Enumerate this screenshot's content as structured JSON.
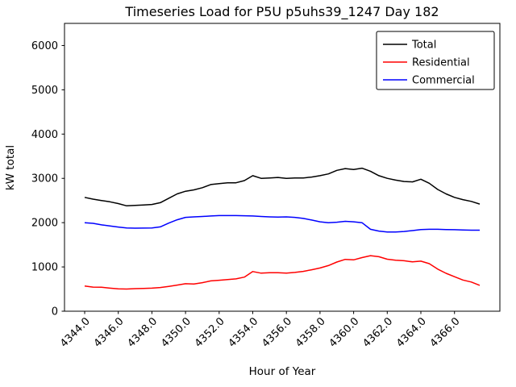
{
  "chart_data": {
    "type": "line",
    "title": "Timeseries Load for P5U p5uhs39_1247  Day 182",
    "xlabel": "Hour of Year",
    "ylabel": "kW total",
    "xlim": [
      4342.8,
      4368.7
    ],
    "ylim": [
      0,
      6500
    ],
    "x_ticks": [
      4344,
      4346,
      4348,
      4350,
      4352,
      4354,
      4356,
      4358,
      4360,
      4362,
      4364,
      4366
    ],
    "x_tick_labels": [
      "4344.0",
      "4346.0",
      "4348.0",
      "4350.0",
      "4352.0",
      "4354.0",
      "4356.0",
      "4358.0",
      "4360.0",
      "4362.0",
      "4364.0",
      "4366.0"
    ],
    "y_ticks": [
      0,
      1000,
      2000,
      3000,
      4000,
      5000,
      6000
    ],
    "y_tick_labels": [
      "0",
      "1000",
      "2000",
      "3000",
      "4000",
      "5000",
      "6000"
    ],
    "grid": false,
    "legend_position": "upper right",
    "x": [
      4344.0,
      4344.5,
      4345.0,
      4345.5,
      4346.0,
      4346.5,
      4347.0,
      4347.5,
      4348.0,
      4348.5,
      4349.0,
      4349.5,
      4350.0,
      4350.5,
      4351.0,
      4351.5,
      4352.0,
      4352.5,
      4353.0,
      4353.5,
      4354.0,
      4354.5,
      4355.0,
      4355.5,
      4356.0,
      4356.5,
      4357.0,
      4357.5,
      4358.0,
      4358.5,
      4359.0,
      4359.5,
      4360.0,
      4360.5,
      4361.0,
      4361.5,
      4362.0,
      4362.5,
      4363.0,
      4363.5,
      4364.0,
      4364.5,
      4365.0,
      4365.5,
      4366.0,
      4366.5,
      4367.0,
      4367.5
    ],
    "series": [
      {
        "name": "Total",
        "color": "#000000",
        "values": [
          2570,
          2530,
          2500,
          2470,
          2430,
          2380,
          2390,
          2400,
          2410,
          2450,
          2550,
          2650,
          2710,
          2740,
          2790,
          2860,
          2880,
          2900,
          2900,
          2950,
          3060,
          3000,
          3010,
          3020,
          3000,
          3010,
          3010,
          3030,
          3060,
          3100,
          3180,
          3220,
          3200,
          3230,
          3160,
          3060,
          3000,
          2960,
          2930,
          2920,
          2980,
          2890,
          2750,
          2650,
          2570,
          2520,
          2480,
          2420
        ]
      },
      {
        "name": "Residential",
        "color": "#ff0000",
        "values": [
          570,
          545,
          540,
          520,
          505,
          500,
          510,
          515,
          520,
          535,
          560,
          590,
          620,
          615,
          645,
          685,
          700,
          715,
          730,
          770,
          895,
          860,
          870,
          870,
          860,
          875,
          900,
          935,
          975,
          1030,
          1110,
          1170,
          1160,
          1210,
          1255,
          1230,
          1175,
          1150,
          1140,
          1115,
          1130,
          1075,
          950,
          855,
          780,
          705,
          660,
          585
        ]
      },
      {
        "name": "Commercial",
        "color": "#0000ff",
        "values": [
          2000,
          1985,
          1950,
          1925,
          1900,
          1880,
          1875,
          1878,
          1880,
          1905,
          1990,
          2065,
          2120,
          2130,
          2140,
          2150,
          2160,
          2160,
          2160,
          2155,
          2150,
          2140,
          2130,
          2125,
          2130,
          2120,
          2095,
          2060,
          2020,
          2000,
          2010,
          2030,
          2020,
          2000,
          1850,
          1810,
          1790,
          1790,
          1800,
          1820,
          1845,
          1850,
          1850,
          1845,
          1840,
          1835,
          1830,
          1830
        ]
      }
    ]
  }
}
